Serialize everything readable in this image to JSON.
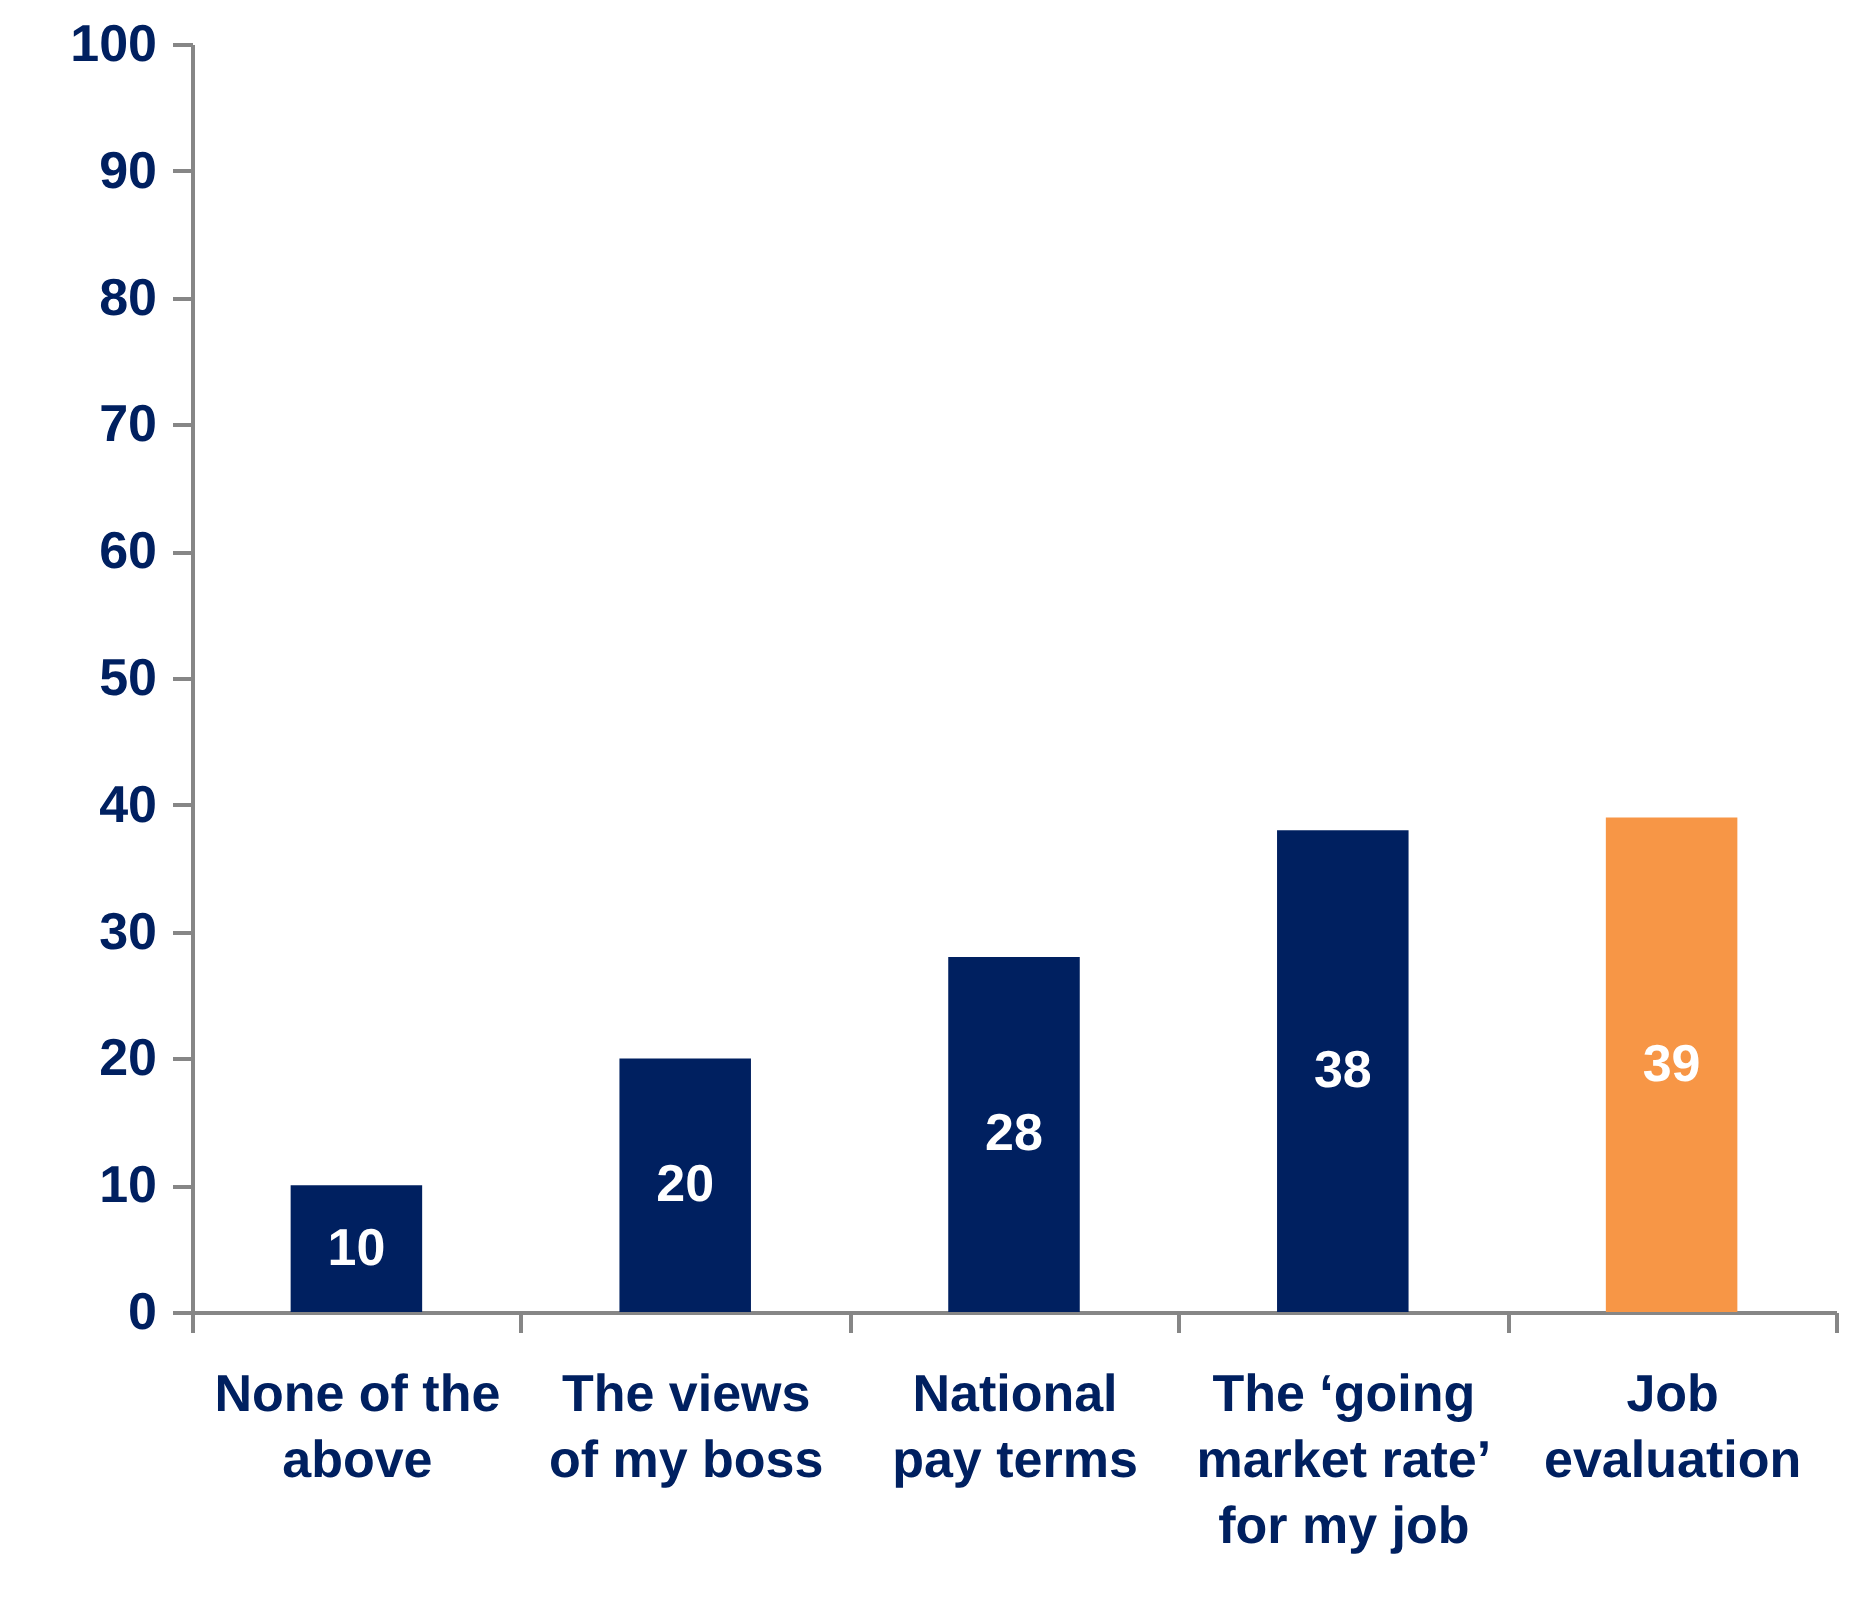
{
  "chart_data": {
    "type": "bar",
    "categories": [
      "None of the above",
      "The views of my boss",
      "National pay terms",
      "The ‘going market rate’ for my job",
      "Job evaluation"
    ],
    "values": [
      10,
      20,
      28,
      38,
      39
    ],
    "colors": [
      "#002060",
      "#002060",
      "#002060",
      "#002060",
      "#f79646"
    ],
    "ylim": [
      0,
      100
    ],
    "yticks": [
      0,
      10,
      20,
      30,
      40,
      50,
      60,
      70,
      80,
      90,
      100
    ],
    "data_labels": true,
    "grid": false
  }
}
